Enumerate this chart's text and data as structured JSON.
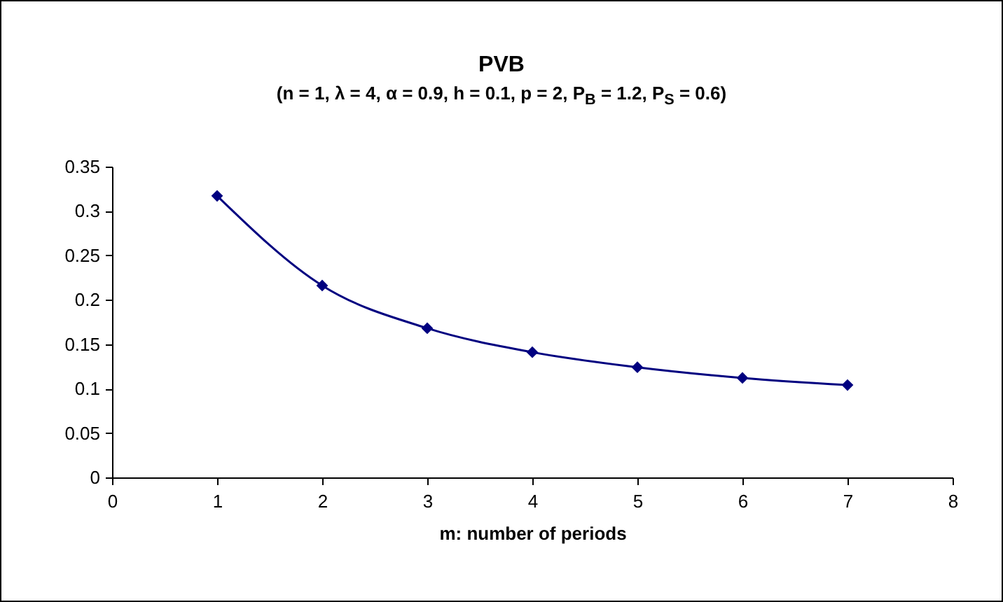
{
  "chart_data": {
    "type": "line",
    "title": "PVB",
    "subtitle": "(n = 1, λ = 4, α = 0.9, h = 0.1, p = 2, P$_{B}$ = 1.2, P$_{S}$ = 0.6)",
    "xlabel": "m: number of periods",
    "x": [
      1,
      2,
      3,
      4,
      5,
      6,
      7
    ],
    "series": [
      {
        "color": "#000080",
        "values": [
          0.317,
          0.216,
          0.168,
          0.141,
          0.124,
          0.112,
          0.104
        ]
      }
    ],
    "xlim": [
      0,
      8
    ],
    "xticks": [
      0,
      1,
      2,
      3,
      4,
      5,
      6,
      7,
      8
    ],
    "ylim": [
      0,
      0.35
    ],
    "yticks": [
      0,
      0.05,
      0.1,
      0.15,
      0.2,
      0.25,
      0.3,
      0.35
    ],
    "grid": false,
    "marker": "diamond",
    "line_style": "solid"
  }
}
